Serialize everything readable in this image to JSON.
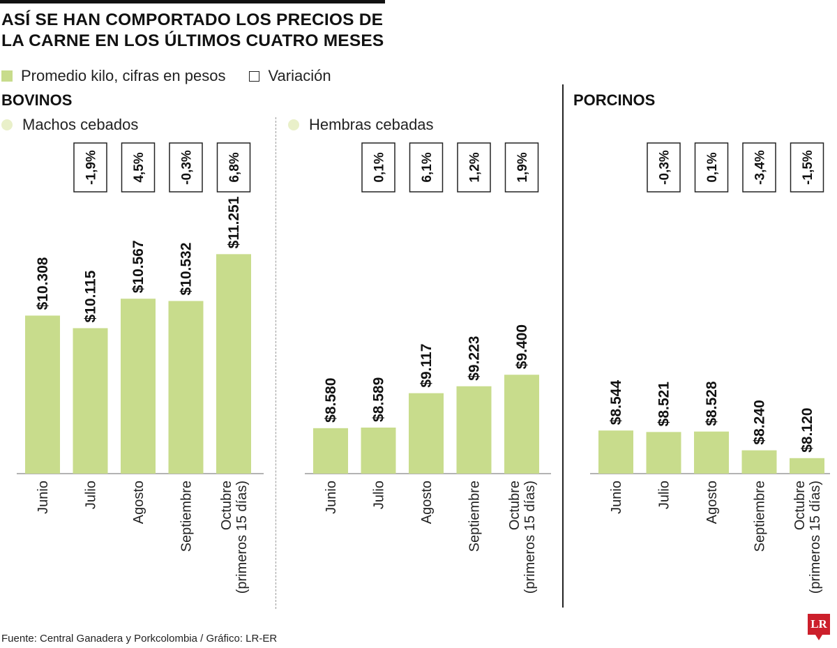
{
  "title": {
    "line1": "Así se han comportado los precios de",
    "line2": "la carne en los últimos cuatro meses"
  },
  "legend": {
    "bars": "Promedio kilo, cifras en pesos",
    "variation": "Variación"
  },
  "colors": {
    "bar": "#c8dc8c",
    "dot": "#e9f0c9",
    "logo": "#cc1f2b"
  },
  "sections": {
    "bovinos": "BOVINOS",
    "porcinos": "PORCINOS"
  },
  "source": "Fuente: Central Ganadera y Porkcolombia / Gráfico: LR-ER",
  "logo_text": "LR",
  "chart_data": [
    {
      "type": "bar",
      "title": "Machos cebados",
      "categories": [
        "Junio",
        "Julio",
        "Agosto",
        "Septiembre",
        "Octubre\n(primeros 15 días)"
      ],
      "values": [
        10308,
        10115,
        10567,
        10532,
        11251
      ],
      "value_labels": [
        "$10.308",
        "$10.115",
        "$10.567",
        "$10.532",
        "$11.251"
      ],
      "variation": [
        "",
        "-1,9%",
        "4,5%",
        "-0,3%",
        "6,8%"
      ],
      "ylim": [
        8000,
        11800
      ],
      "grid": false
    },
    {
      "type": "bar",
      "title": "Hembras cebadas",
      "categories": [
        "Junio",
        "Julio",
        "Agosto",
        "Septiembre",
        "Octubre\n(primeros 15 días)"
      ],
      "values": [
        8580,
        8589,
        9117,
        9223,
        9400
      ],
      "value_labels": [
        "$8.580",
        "$8.589",
        "$9.117",
        "$9.223",
        "$9.400"
      ],
      "variation": [
        "",
        "0,1%",
        "6,1%",
        "1,2%",
        "1,9%"
      ],
      "ylim": [
        8000,
        11800
      ],
      "grid": false
    },
    {
      "type": "bar",
      "title": "",
      "categories": [
        "Junio",
        "Julio",
        "Agosto",
        "Septiembre",
        "Octubre\n(primeros 15 días)"
      ],
      "values": [
        8544,
        8521,
        8528,
        8240,
        8120
      ],
      "value_labels": [
        "$8.544",
        "$8.521",
        "$8.528",
        "$8.240",
        "$8.120"
      ],
      "variation": [
        "",
        "-0,3%",
        "0,1%",
        "-3,4%",
        "-1,5%"
      ],
      "ylim": [
        8000,
        11800
      ],
      "grid": false
    }
  ]
}
